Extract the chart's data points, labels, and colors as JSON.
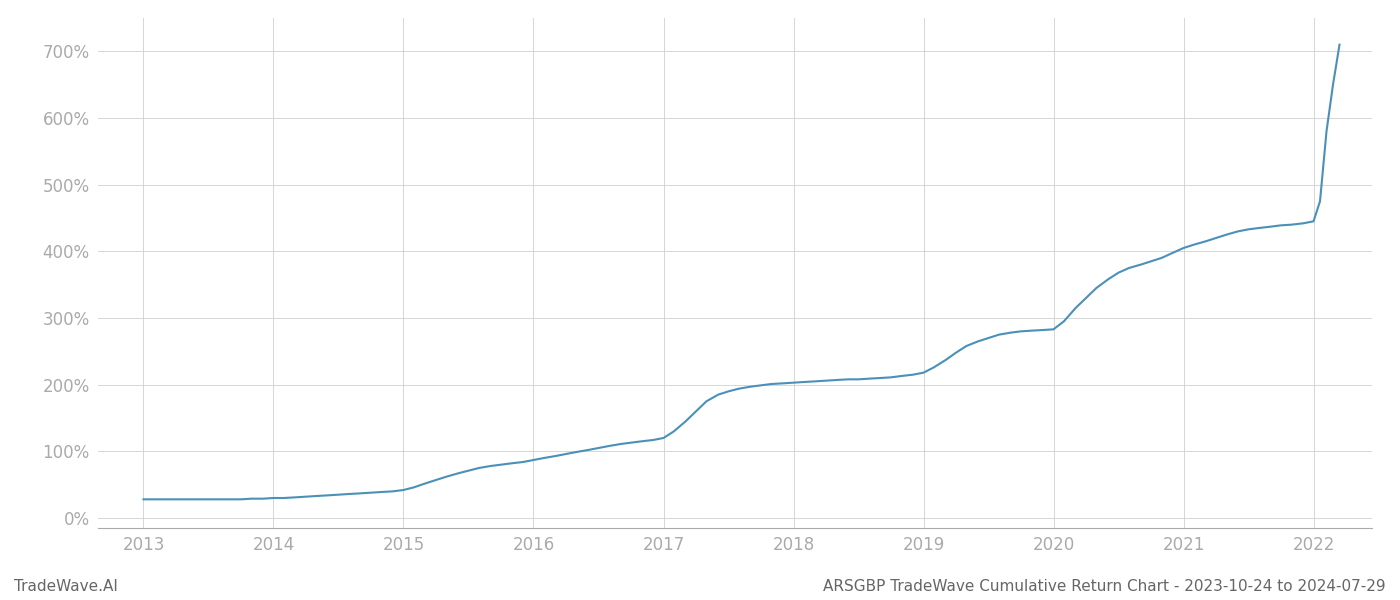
{
  "title": "ARSGBP TradeWave Cumulative Return Chart - 2023-10-24 to 2024-07-29",
  "watermark": "TradeWave.AI",
  "line_color": "#4a90b8",
  "background_color": "#ffffff",
  "grid_color": "#d0d0d0",
  "tick_label_color": "#aaaaaa",
  "x_years": [
    2013,
    2014,
    2015,
    2016,
    2017,
    2018,
    2019,
    2020,
    2021,
    2022
  ],
  "y_ticks": [
    0,
    100,
    200,
    300,
    400,
    500,
    600,
    700
  ],
  "ylim": [
    -15,
    750
  ],
  "x_data": [
    2013.0,
    2013.08,
    2013.17,
    2013.25,
    2013.33,
    2013.42,
    2013.5,
    2013.58,
    2013.67,
    2013.75,
    2013.83,
    2013.92,
    2014.0,
    2014.08,
    2014.17,
    2014.25,
    2014.33,
    2014.42,
    2014.5,
    2014.58,
    2014.67,
    2014.75,
    2014.83,
    2014.92,
    2015.0,
    2015.08,
    2015.17,
    2015.25,
    2015.33,
    2015.42,
    2015.5,
    2015.58,
    2015.67,
    2015.75,
    2015.83,
    2015.92,
    2016.0,
    2016.08,
    2016.17,
    2016.25,
    2016.33,
    2016.42,
    2016.5,
    2016.58,
    2016.67,
    2016.75,
    2016.83,
    2016.92,
    2017.0,
    2017.08,
    2017.17,
    2017.25,
    2017.33,
    2017.42,
    2017.5,
    2017.58,
    2017.67,
    2017.75,
    2017.83,
    2017.92,
    2018.0,
    2018.08,
    2018.17,
    2018.25,
    2018.33,
    2018.42,
    2018.5,
    2018.58,
    2018.67,
    2018.75,
    2018.83,
    2018.92,
    2019.0,
    2019.08,
    2019.17,
    2019.25,
    2019.33,
    2019.42,
    2019.5,
    2019.58,
    2019.67,
    2019.75,
    2019.83,
    2019.92,
    2020.0,
    2020.08,
    2020.17,
    2020.25,
    2020.33,
    2020.42,
    2020.5,
    2020.58,
    2020.67,
    2020.75,
    2020.83,
    2020.92,
    2021.0,
    2021.08,
    2021.17,
    2021.25,
    2021.33,
    2021.42,
    2021.5,
    2021.58,
    2021.67,
    2021.75,
    2021.83,
    2021.92,
    2022.0,
    2022.05,
    2022.1,
    2022.15,
    2022.2
  ],
  "y_data": [
    28,
    28,
    28,
    28,
    28,
    28,
    28,
    28,
    28,
    28,
    29,
    29,
    30,
    30,
    31,
    32,
    33,
    34,
    35,
    36,
    37,
    38,
    39,
    40,
    42,
    46,
    52,
    57,
    62,
    67,
    71,
    75,
    78,
    80,
    82,
    84,
    87,
    90,
    93,
    96,
    99,
    102,
    105,
    108,
    111,
    113,
    115,
    117,
    120,
    130,
    145,
    160,
    175,
    185,
    190,
    194,
    197,
    199,
    201,
    202,
    203,
    204,
    205,
    206,
    207,
    208,
    208,
    209,
    210,
    211,
    213,
    215,
    218,
    226,
    237,
    248,
    258,
    265,
    270,
    275,
    278,
    280,
    281,
    282,
    283,
    295,
    315,
    330,
    345,
    358,
    368,
    375,
    380,
    385,
    390,
    398,
    405,
    410,
    415,
    420,
    425,
    430,
    433,
    435,
    437,
    439,
    440,
    442,
    445,
    475,
    580,
    650,
    710
  ],
  "xlim": [
    2012.65,
    2022.45
  ],
  "line_width": 1.5
}
